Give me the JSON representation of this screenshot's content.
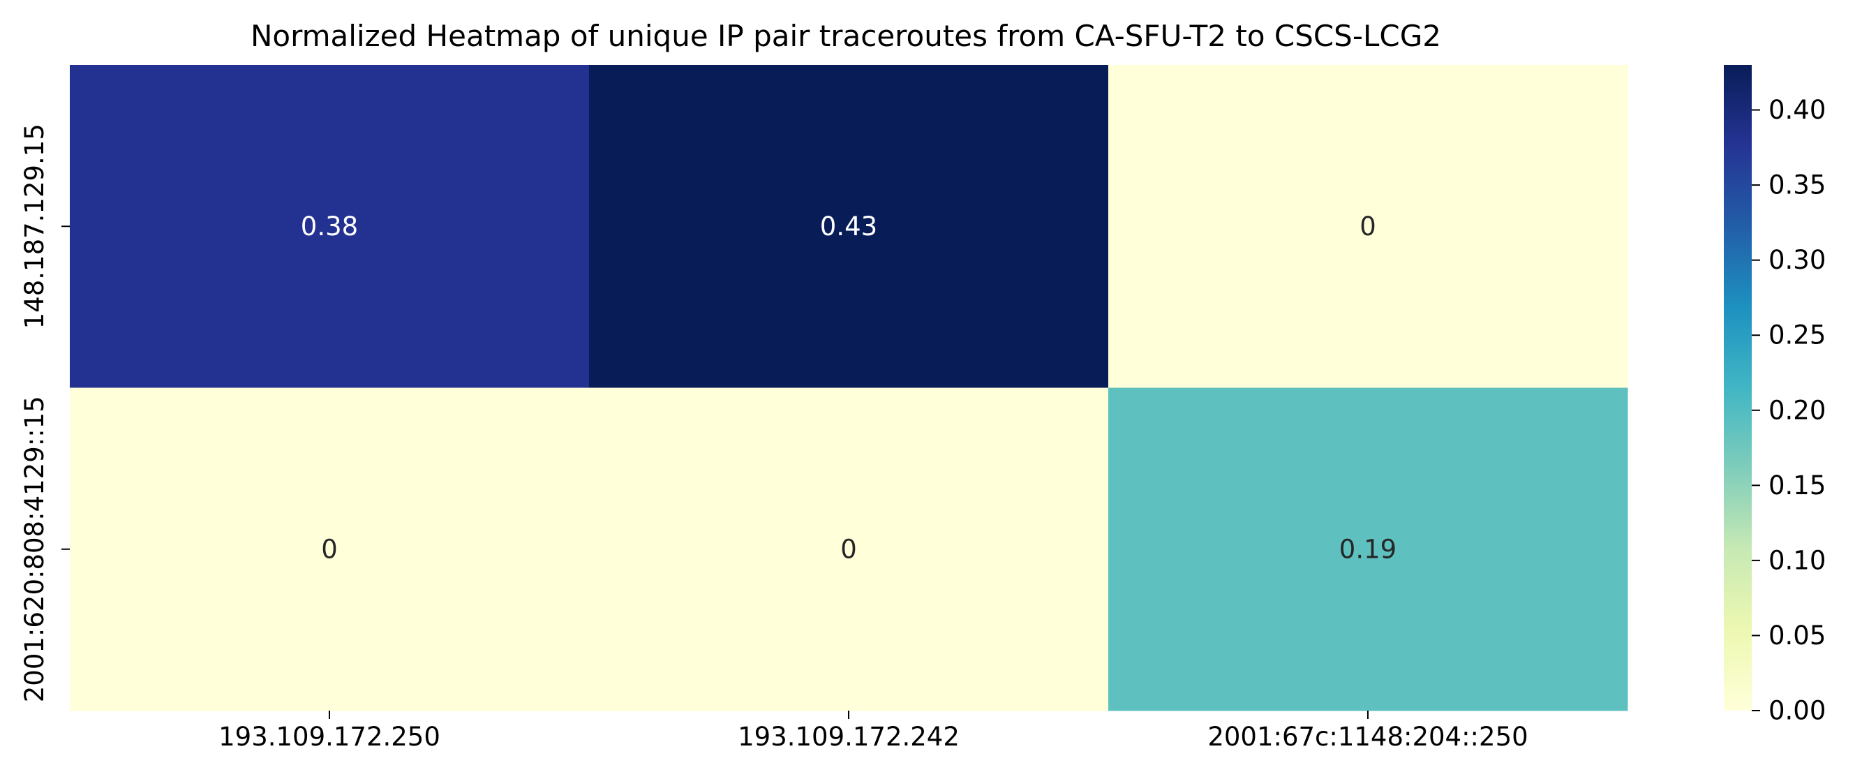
{
  "chart_data": {
    "type": "heatmap",
    "title": "Normalized Heatmap of unique IP pair traceroutes from CA-SFU-T2 to CSCS-LCG2",
    "xlabel": "",
    "ylabel": "",
    "x_categories": [
      "193.109.172.250",
      "193.109.172.242",
      "2001:67c:1148:204::250"
    ],
    "y_categories": [
      "148.187.129.15",
      "2001:620:808:4129::15"
    ],
    "values": [
      [
        0.38,
        0.43,
        0
      ],
      [
        0,
        0,
        0.19
      ]
    ],
    "value_labels": [
      [
        "0.38",
        "0.43",
        "0"
      ],
      [
        "0",
        "0",
        "0.19"
      ]
    ],
    "colormap": "YlGnBu",
    "colorbar": {
      "range": [
        0,
        0.43
      ],
      "ticks": [
        0.0,
        0.05,
        0.1,
        0.15,
        0.2,
        0.25,
        0.3,
        0.35,
        0.4
      ],
      "tick_labels": [
        "0.00",
        "0.05",
        "0.10",
        "0.15",
        "0.20",
        "0.25",
        "0.30",
        "0.35",
        "0.40"
      ]
    },
    "grid": false,
    "annotations": true
  }
}
